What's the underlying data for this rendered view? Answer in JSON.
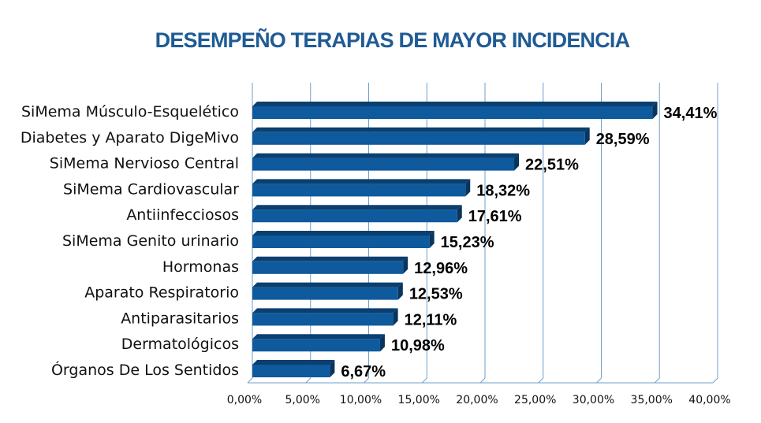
{
  "chart_data": {
    "type": "bar",
    "orientation": "horizontal",
    "title": "DESEMPEÑO TERAPIAS DE MAYOR INCIDENCIA",
    "categories": [
      "SiMema Músculo-Esquelético",
      "Diabetes y Aparato DigeMivo",
      "SiMema Nervioso Central",
      "SiMema Cardiovascular",
      "Antiinfecciosos",
      "SiMema Genito urinario",
      "Hormonas",
      "Aparato Respiratorio",
      "Antiparasitarios",
      "Dermatológicos",
      "Órganos De Los Sentidos"
    ],
    "values": [
      34.41,
      28.59,
      22.51,
      18.32,
      17.61,
      15.23,
      12.96,
      12.53,
      12.11,
      10.98,
      6.67
    ],
    "value_labels": [
      "34,41%",
      "28,59%",
      "22,51%",
      "18,32%",
      "17,61%",
      "15,23%",
      "12,96%",
      "12,53%",
      "12,11%",
      "10,98%",
      "6,67%"
    ],
    "xlim": [
      0,
      40
    ],
    "xticks": [
      0,
      5,
      10,
      15,
      20,
      25,
      30,
      35,
      40
    ],
    "xtick_labels": [
      "0,00%",
      "5,00%",
      "10,00%",
      "15,00%",
      "20,00%",
      "25,00%",
      "30,00%",
      "35,00%",
      "40,00%"
    ],
    "grid": true,
    "bar_color": "#0e5a9c",
    "bar_dark_color": "#0a3f70",
    "grid_color": "#6f9fc8",
    "title_color": "#1f5b94"
  }
}
